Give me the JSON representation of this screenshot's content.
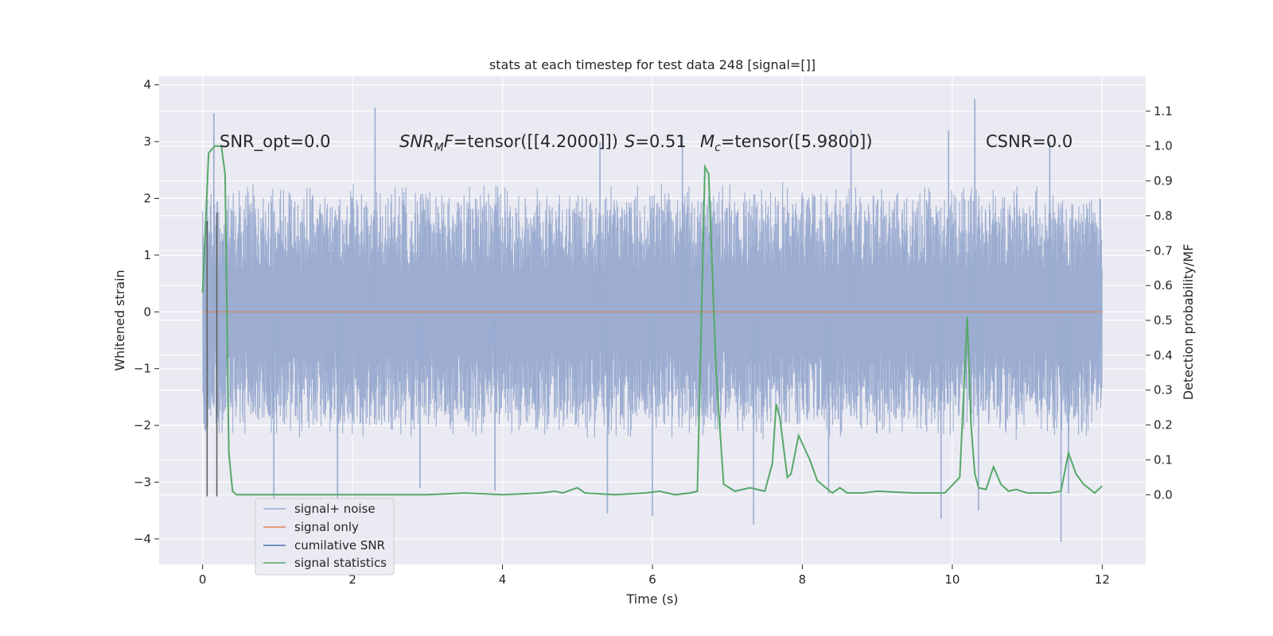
{
  "chart_data": {
    "type": "line",
    "title": "stats at each timestep for test data 248 [signal=[]]",
    "xlabel": "Time (s)",
    "ylabel": "Whitened strain",
    "ylabel_right": "Detection probability/MF",
    "xlim": [
      -0.58,
      12.58
    ],
    "ylim": [
      -4.45,
      4.15
    ],
    "ylim_right": [
      -0.2,
      1.2
    ],
    "xticks": [
      0,
      2,
      4,
      6,
      8,
      10,
      12
    ],
    "yticks": [
      -4,
      -3,
      -2,
      -1,
      0,
      1,
      2,
      3,
      4
    ],
    "yticks_right": [
      0.0,
      0.1,
      0.2,
      0.3,
      0.4,
      0.5,
      0.6,
      0.7,
      0.8,
      0.9,
      1.0,
      1.1
    ],
    "xtick_labels": [
      "0",
      "2",
      "4",
      "6",
      "8",
      "10",
      "12"
    ],
    "ytick_labels": [
      "−4",
      "−3",
      "−2",
      "−1",
      "0",
      "1",
      "2",
      "3",
      "4"
    ],
    "ytick_right_labels": [
      "0.0",
      "0.1",
      "0.2",
      "0.3",
      "0.4",
      "0.5",
      "0.6",
      "0.7",
      "0.8",
      "0.9",
      "1.0",
      "1.1"
    ],
    "grid": true,
    "legend_position": "lower-left",
    "annotations": {
      "snr_opt": "SNR_opt=0.0",
      "snr_mf_var": "SNR",
      "snr_mf_sub": "M",
      "snr_mf_var2": "F",
      "snr_mf_value": "=tensor([[4.2000]])",
      "s_var": "S",
      "s_value": "=0.51",
      "mc_var": "M",
      "mc_sub": "c",
      "mc_value": "=tensor([5.9800])",
      "csnr": "CSNR=0.0"
    },
    "colors": {
      "noise": "#98aacf",
      "signal_only": "#dd8452",
      "cumulative_snr": "#4c72b0",
      "signal_statistics": "#55a868",
      "marker_lines": "#606060",
      "axes_bg": "#eaeaf2",
      "grid": "#ffffff"
    },
    "series": [
      {
        "name": "signal+ noise",
        "x_range": [
          0.0,
          12.0
        ],
        "envelope": {
          "x": [
            0.0,
            1.0,
            2.0,
            3.0,
            4.0,
            5.0,
            6.0,
            7.0,
            8.0,
            9.0,
            10.0,
            11.0,
            12.0
          ],
          "upper": [
            2.3,
            2.3,
            2.3,
            2.3,
            2.3,
            2.3,
            2.3,
            2.3,
            2.3,
            2.3,
            2.3,
            2.3,
            2.3
          ],
          "lower": [
            -2.3,
            -2.3,
            -2.3,
            -2.3,
            -2.3,
            -2.3,
            -2.3,
            -2.3,
            -2.3,
            -2.3,
            -2.3,
            -2.3,
            -2.3
          ]
        },
        "spikes": [
          {
            "x": 0.15,
            "y": 3.5
          },
          {
            "x": 2.3,
            "y": 3.6
          },
          {
            "x": 10.3,
            "y": 3.75
          },
          {
            "x": 8.65,
            "y": 3.2
          },
          {
            "x": 9.95,
            "y": 3.2
          },
          {
            "x": 5.3,
            "y": 3.0
          },
          {
            "x": 6.4,
            "y": 3.1
          },
          {
            "x": 11.3,
            "y": 3.0
          },
          {
            "x": 11.45,
            "y": -4.05
          },
          {
            "x": 10.35,
            "y": -3.5
          },
          {
            "x": 5.4,
            "y": -3.55
          },
          {
            "x": 6.0,
            "y": -3.6
          },
          {
            "x": 7.35,
            "y": -3.75
          },
          {
            "x": 9.85,
            "y": -3.65
          },
          {
            "x": 0.95,
            "y": -3.3
          },
          {
            "x": 1.8,
            "y": -3.3
          },
          {
            "x": 3.9,
            "y": -3.15
          },
          {
            "x": 8.35,
            "y": -3.2
          },
          {
            "x": 11.55,
            "y": -3.2
          },
          {
            "x": 2.9,
            "y": -3.1
          }
        ]
      },
      {
        "name": "signal only",
        "x": [
          0,
          12
        ],
        "values": [
          0,
          0
        ]
      },
      {
        "name": "cumilative SNR",
        "x": [
          0.06,
          0.06,
          0.19,
          0.19
        ],
        "values": [
          -3.25,
          1.6,
          -3.25,
          1.75
        ]
      },
      {
        "name": "signal statistics",
        "axis": "right",
        "x": [
          0.0,
          0.08,
          0.16,
          0.25,
          0.3,
          0.35,
          0.4,
          0.45,
          0.5,
          0.6,
          1.0,
          2.0,
          3.0,
          3.5,
          4.0,
          4.5,
          4.7,
          4.8,
          5.0,
          5.1,
          5.5,
          5.9,
          6.1,
          6.3,
          6.5,
          6.6,
          6.7,
          6.75,
          6.85,
          6.95,
          7.1,
          7.3,
          7.5,
          7.6,
          7.65,
          7.7,
          7.8,
          7.85,
          7.95,
          8.1,
          8.2,
          8.4,
          8.5,
          8.6,
          8.8,
          9.0,
          9.5,
          9.9,
          10.1,
          10.2,
          10.25,
          10.3,
          10.35,
          10.45,
          10.55,
          10.65,
          10.75,
          10.85,
          11.0,
          11.3,
          11.45,
          11.55,
          11.65,
          11.75,
          11.9,
          12.0
        ],
        "values": [
          0.58,
          0.98,
          1.0,
          1.0,
          0.92,
          0.12,
          0.01,
          0.0,
          0.0,
          0.0,
          0.0,
          0.0,
          0.0,
          0.005,
          0.0,
          0.005,
          0.01,
          0.005,
          0.02,
          0.005,
          0.0,
          0.005,
          0.01,
          0.0,
          0.005,
          0.01,
          0.94,
          0.92,
          0.35,
          0.03,
          0.01,
          0.02,
          0.01,
          0.09,
          0.26,
          0.22,
          0.05,
          0.06,
          0.17,
          0.1,
          0.04,
          0.005,
          0.02,
          0.005,
          0.005,
          0.01,
          0.005,
          0.005,
          0.05,
          0.51,
          0.2,
          0.06,
          0.02,
          0.015,
          0.08,
          0.03,
          0.01,
          0.015,
          0.005,
          0.005,
          0.01,
          0.12,
          0.06,
          0.03,
          0.005,
          0.025
        ]
      }
    ]
  }
}
